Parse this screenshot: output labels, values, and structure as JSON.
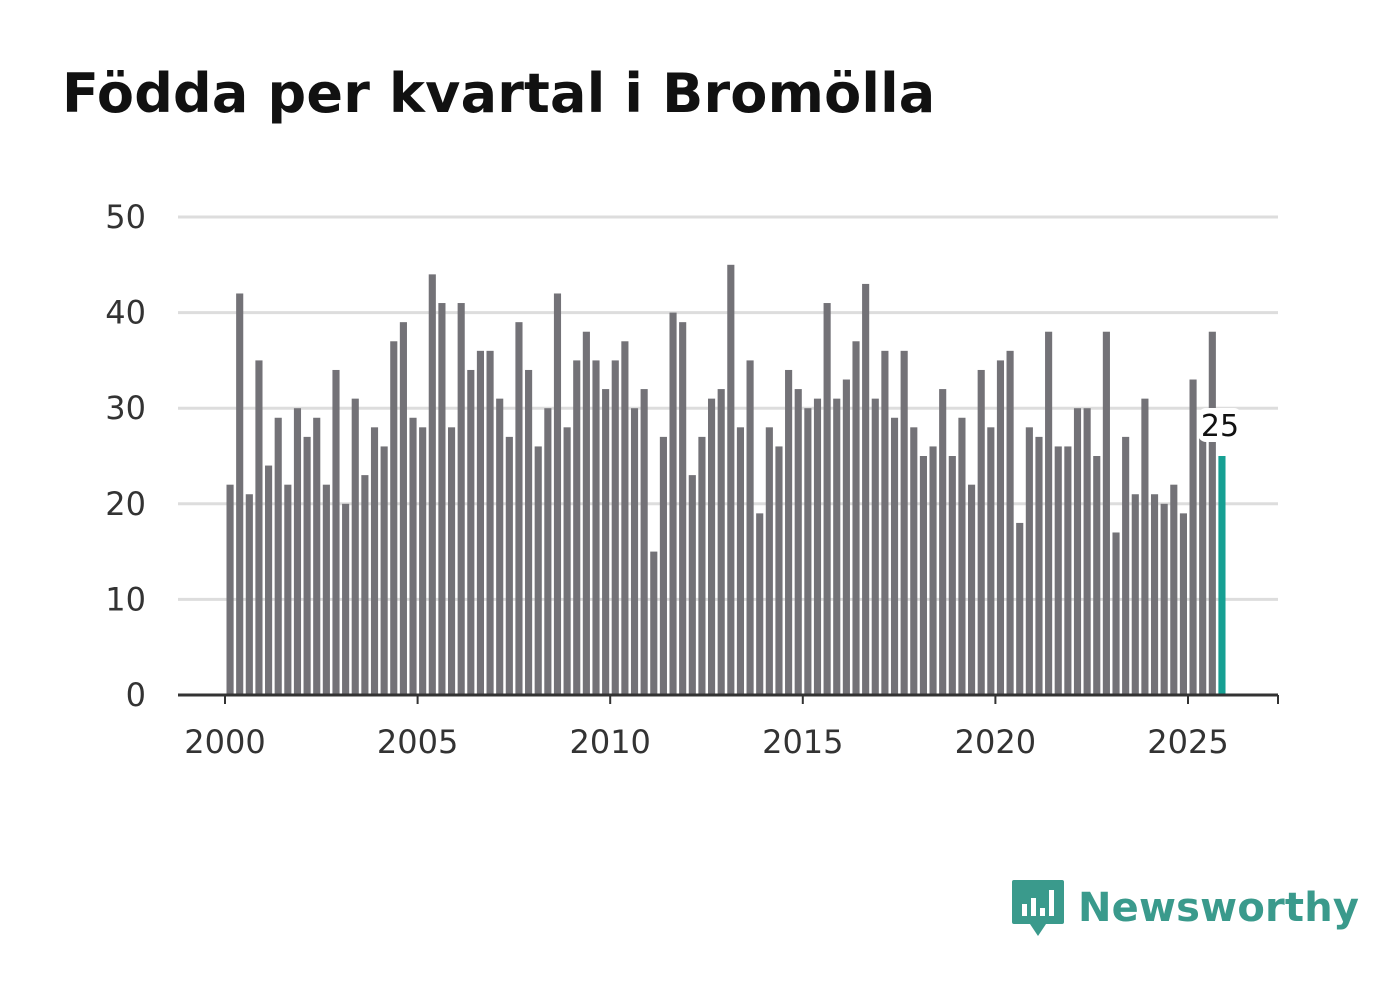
{
  "title": "Födda per kvartal i Bromölla",
  "brand": {
    "name": "Newsworthy",
    "color": "#3a9a8c",
    "icon": "bar-chart-speech-bubble-icon"
  },
  "colors": {
    "bar": "#737277",
    "highlight": "#16a093",
    "grid": "#dddddd",
    "axis": "#333333"
  },
  "chart_data": {
    "type": "bar",
    "title": "Födda per kvartal i Bromölla",
    "xlabel": "",
    "ylabel": "",
    "ylim": [
      0,
      50
    ],
    "yticks": [
      0,
      10,
      20,
      30,
      40,
      50
    ],
    "xticks": [
      2000,
      2005,
      2010,
      2015,
      2020,
      2025
    ],
    "xlim": [
      2000,
      2027.25
    ],
    "grid": true,
    "start_year": 2000,
    "start_quarter": 1,
    "values": [
      22,
      42,
      21,
      35,
      24,
      29,
      22,
      30,
      27,
      29,
      22,
      34,
      20,
      31,
      23,
      28,
      26,
      37,
      39,
      29,
      28,
      44,
      41,
      28,
      41,
      34,
      36,
      36,
      31,
      27,
      39,
      34,
      26,
      30,
      42,
      28,
      35,
      38,
      35,
      32,
      35,
      37,
      30,
      32,
      15,
      27,
      40,
      39,
      23,
      27,
      31,
      32,
      45,
      28,
      35,
      19,
      28,
      26,
      34,
      32,
      30,
      31,
      41,
      31,
      33,
      37,
      43,
      31,
      36,
      29,
      36,
      28,
      25,
      26,
      32,
      25,
      29,
      22,
      34,
      28,
      35,
      36,
      18,
      28,
      27,
      38,
      26,
      26,
      30,
      30,
      25,
      38,
      17,
      27,
      21,
      31,
      21,
      20,
      22,
      19,
      33,
      27,
      38,
      25
    ],
    "highlight_last": true,
    "annotation": {
      "text": "25",
      "target": "last-bar"
    }
  }
}
